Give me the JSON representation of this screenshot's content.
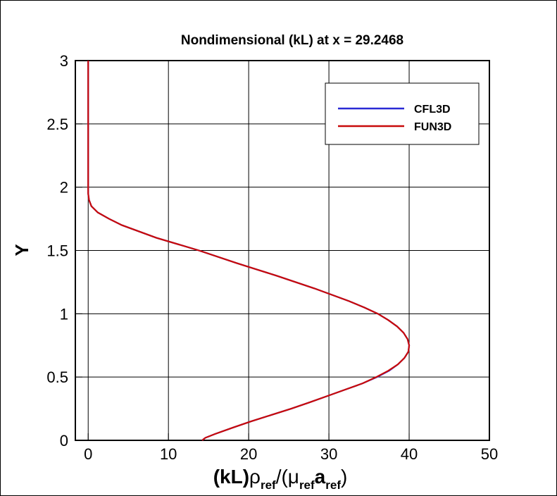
{
  "chart_data": {
    "type": "line",
    "title": "Nondimensional (kL) at x = 29.2468",
    "xlabel_parts": [
      "(kL)",
      "ρ",
      "ref",
      "/(",
      "μ",
      "ref",
      "a",
      "ref",
      ")"
    ],
    "ylabel": "Y",
    "xlim": [
      -1.6,
      50
    ],
    "ylim": [
      0,
      3
    ],
    "xticks": [
      0,
      10,
      20,
      30,
      40,
      50
    ],
    "yticks": [
      0,
      0.5,
      1,
      1.5,
      2,
      2.5,
      3
    ],
    "grid": true,
    "legend": "upper right",
    "series": [
      {
        "name": "CFL3D",
        "color": "#2a2ad4",
        "x": [
          14.2,
          14.6,
          15.8,
          18.0,
          20.3,
          22.8,
          25.3,
          27.6,
          29.8,
          32.0,
          34.2,
          36.0,
          37.5,
          38.6,
          39.4,
          39.9,
          40.0,
          39.8,
          39.3,
          38.5,
          37.4,
          36.1,
          34.4,
          32.5,
          28.2,
          23.5,
          18.5,
          13.8,
          8.5,
          4.2,
          2.6,
          1.2,
          0.4,
          0.1,
          0,
          0,
          0
        ],
        "y": [
          0,
          0.02,
          0.05,
          0.1,
          0.15,
          0.2,
          0.25,
          0.3,
          0.35,
          0.4,
          0.45,
          0.5,
          0.55,
          0.6,
          0.65,
          0.7,
          0.75,
          0.8,
          0.85,
          0.9,
          0.95,
          1.0,
          1.05,
          1.1,
          1.2,
          1.3,
          1.4,
          1.5,
          1.6,
          1.7,
          1.75,
          1.8,
          1.85,
          1.9,
          1.95,
          2.0,
          3.0
        ]
      },
      {
        "name": "FUN3D",
        "color": "#c80a0a",
        "x": [
          14.2,
          14.6,
          15.8,
          18.0,
          20.3,
          22.8,
          25.3,
          27.6,
          29.8,
          32.0,
          34.2,
          35.9,
          37.4,
          38.6,
          39.4,
          39.9,
          40.0,
          39.8,
          39.3,
          38.5,
          37.4,
          36.1,
          34.4,
          32.5,
          28.2,
          23.5,
          18.5,
          13.8,
          8.5,
          4.2,
          2.6,
          1.2,
          0.4,
          0.1,
          0,
          0,
          0
        ],
        "y": [
          0,
          0.02,
          0.05,
          0.1,
          0.15,
          0.2,
          0.25,
          0.3,
          0.35,
          0.4,
          0.45,
          0.5,
          0.55,
          0.6,
          0.65,
          0.7,
          0.75,
          0.8,
          0.85,
          0.9,
          0.95,
          1.0,
          1.05,
          1.1,
          1.2,
          1.3,
          1.4,
          1.5,
          1.6,
          1.7,
          1.75,
          1.8,
          1.85,
          1.9,
          1.95,
          2.0,
          3.0
        ]
      }
    ]
  }
}
